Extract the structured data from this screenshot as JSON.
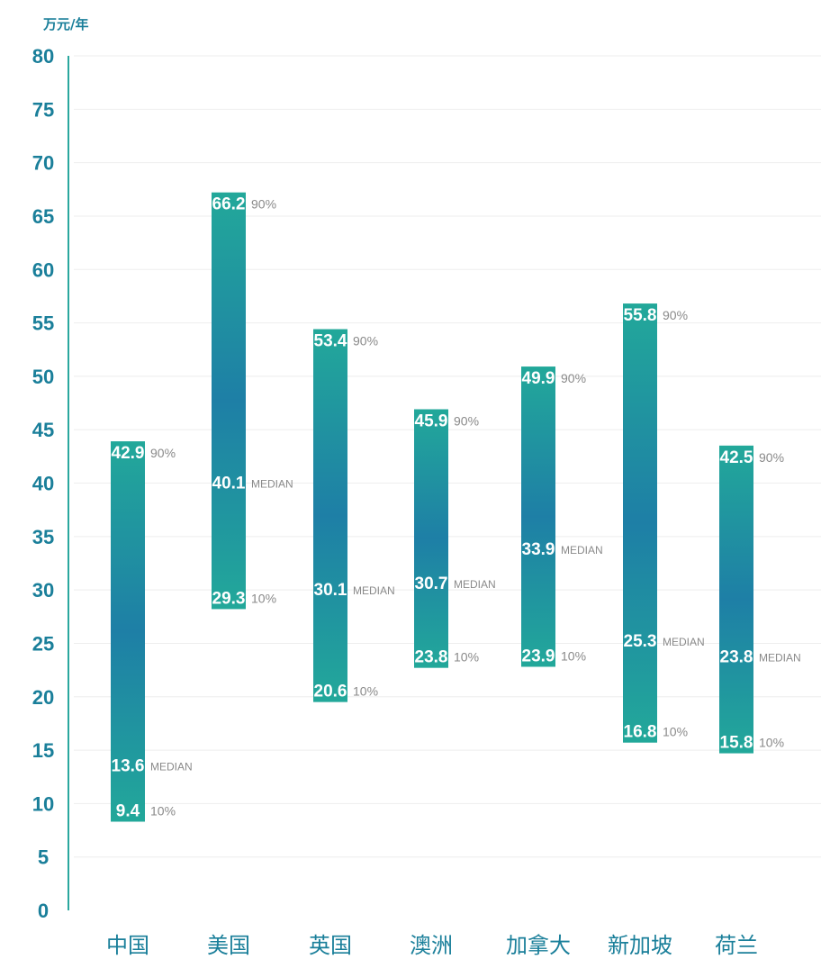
{
  "chart_data": {
    "type": "bar",
    "subtype": "floating-range",
    "ylabel": "万元/年",
    "ylim": [
      0,
      80
    ],
    "yticks": [
      "0",
      "5",
      "10",
      "15",
      "20",
      "25",
      "30",
      "35",
      "40",
      "45",
      "50",
      "55",
      "60",
      "65",
      "70",
      "75",
      "80"
    ],
    "grid": true,
    "categories": [
      "中国",
      "美国",
      "英国",
      "澳洲",
      "加拿大",
      "新加坡",
      "荷兰"
    ],
    "series": [
      {
        "name": "90%",
        "values": [
          42.9,
          66.2,
          53.4,
          45.9,
          49.9,
          55.8,
          42.5
        ],
        "labels": [
          "42.9",
          "66.2",
          "53.4",
          "45.9",
          "49.9",
          "55.8",
          "42.5"
        ]
      },
      {
        "name": "MEDIAN",
        "values": [
          13.6,
          40.1,
          30.1,
          30.7,
          33.9,
          25.3,
          23.8
        ],
        "labels": [
          "13.6",
          "40.1",
          "30.1",
          "30.7",
          "33.9",
          "25.3",
          "23.8"
        ]
      },
      {
        "name": "10%",
        "values": [
          9.4,
          29.3,
          20.6,
          23.8,
          23.9,
          16.8,
          15.8
        ],
        "labels": [
          "9.4",
          "29.3",
          "20.6",
          "23.8",
          "23.9",
          "16.8",
          "15.8"
        ]
      }
    ],
    "colors": {
      "axis_text": "#1a7f9a",
      "axis_line": "#2aa79e",
      "bar_teal": "#22a89a",
      "bar_blue": "#1e7fa6",
      "tag_text": "#8a8a8a",
      "grid": "#eeeeee"
    }
  }
}
